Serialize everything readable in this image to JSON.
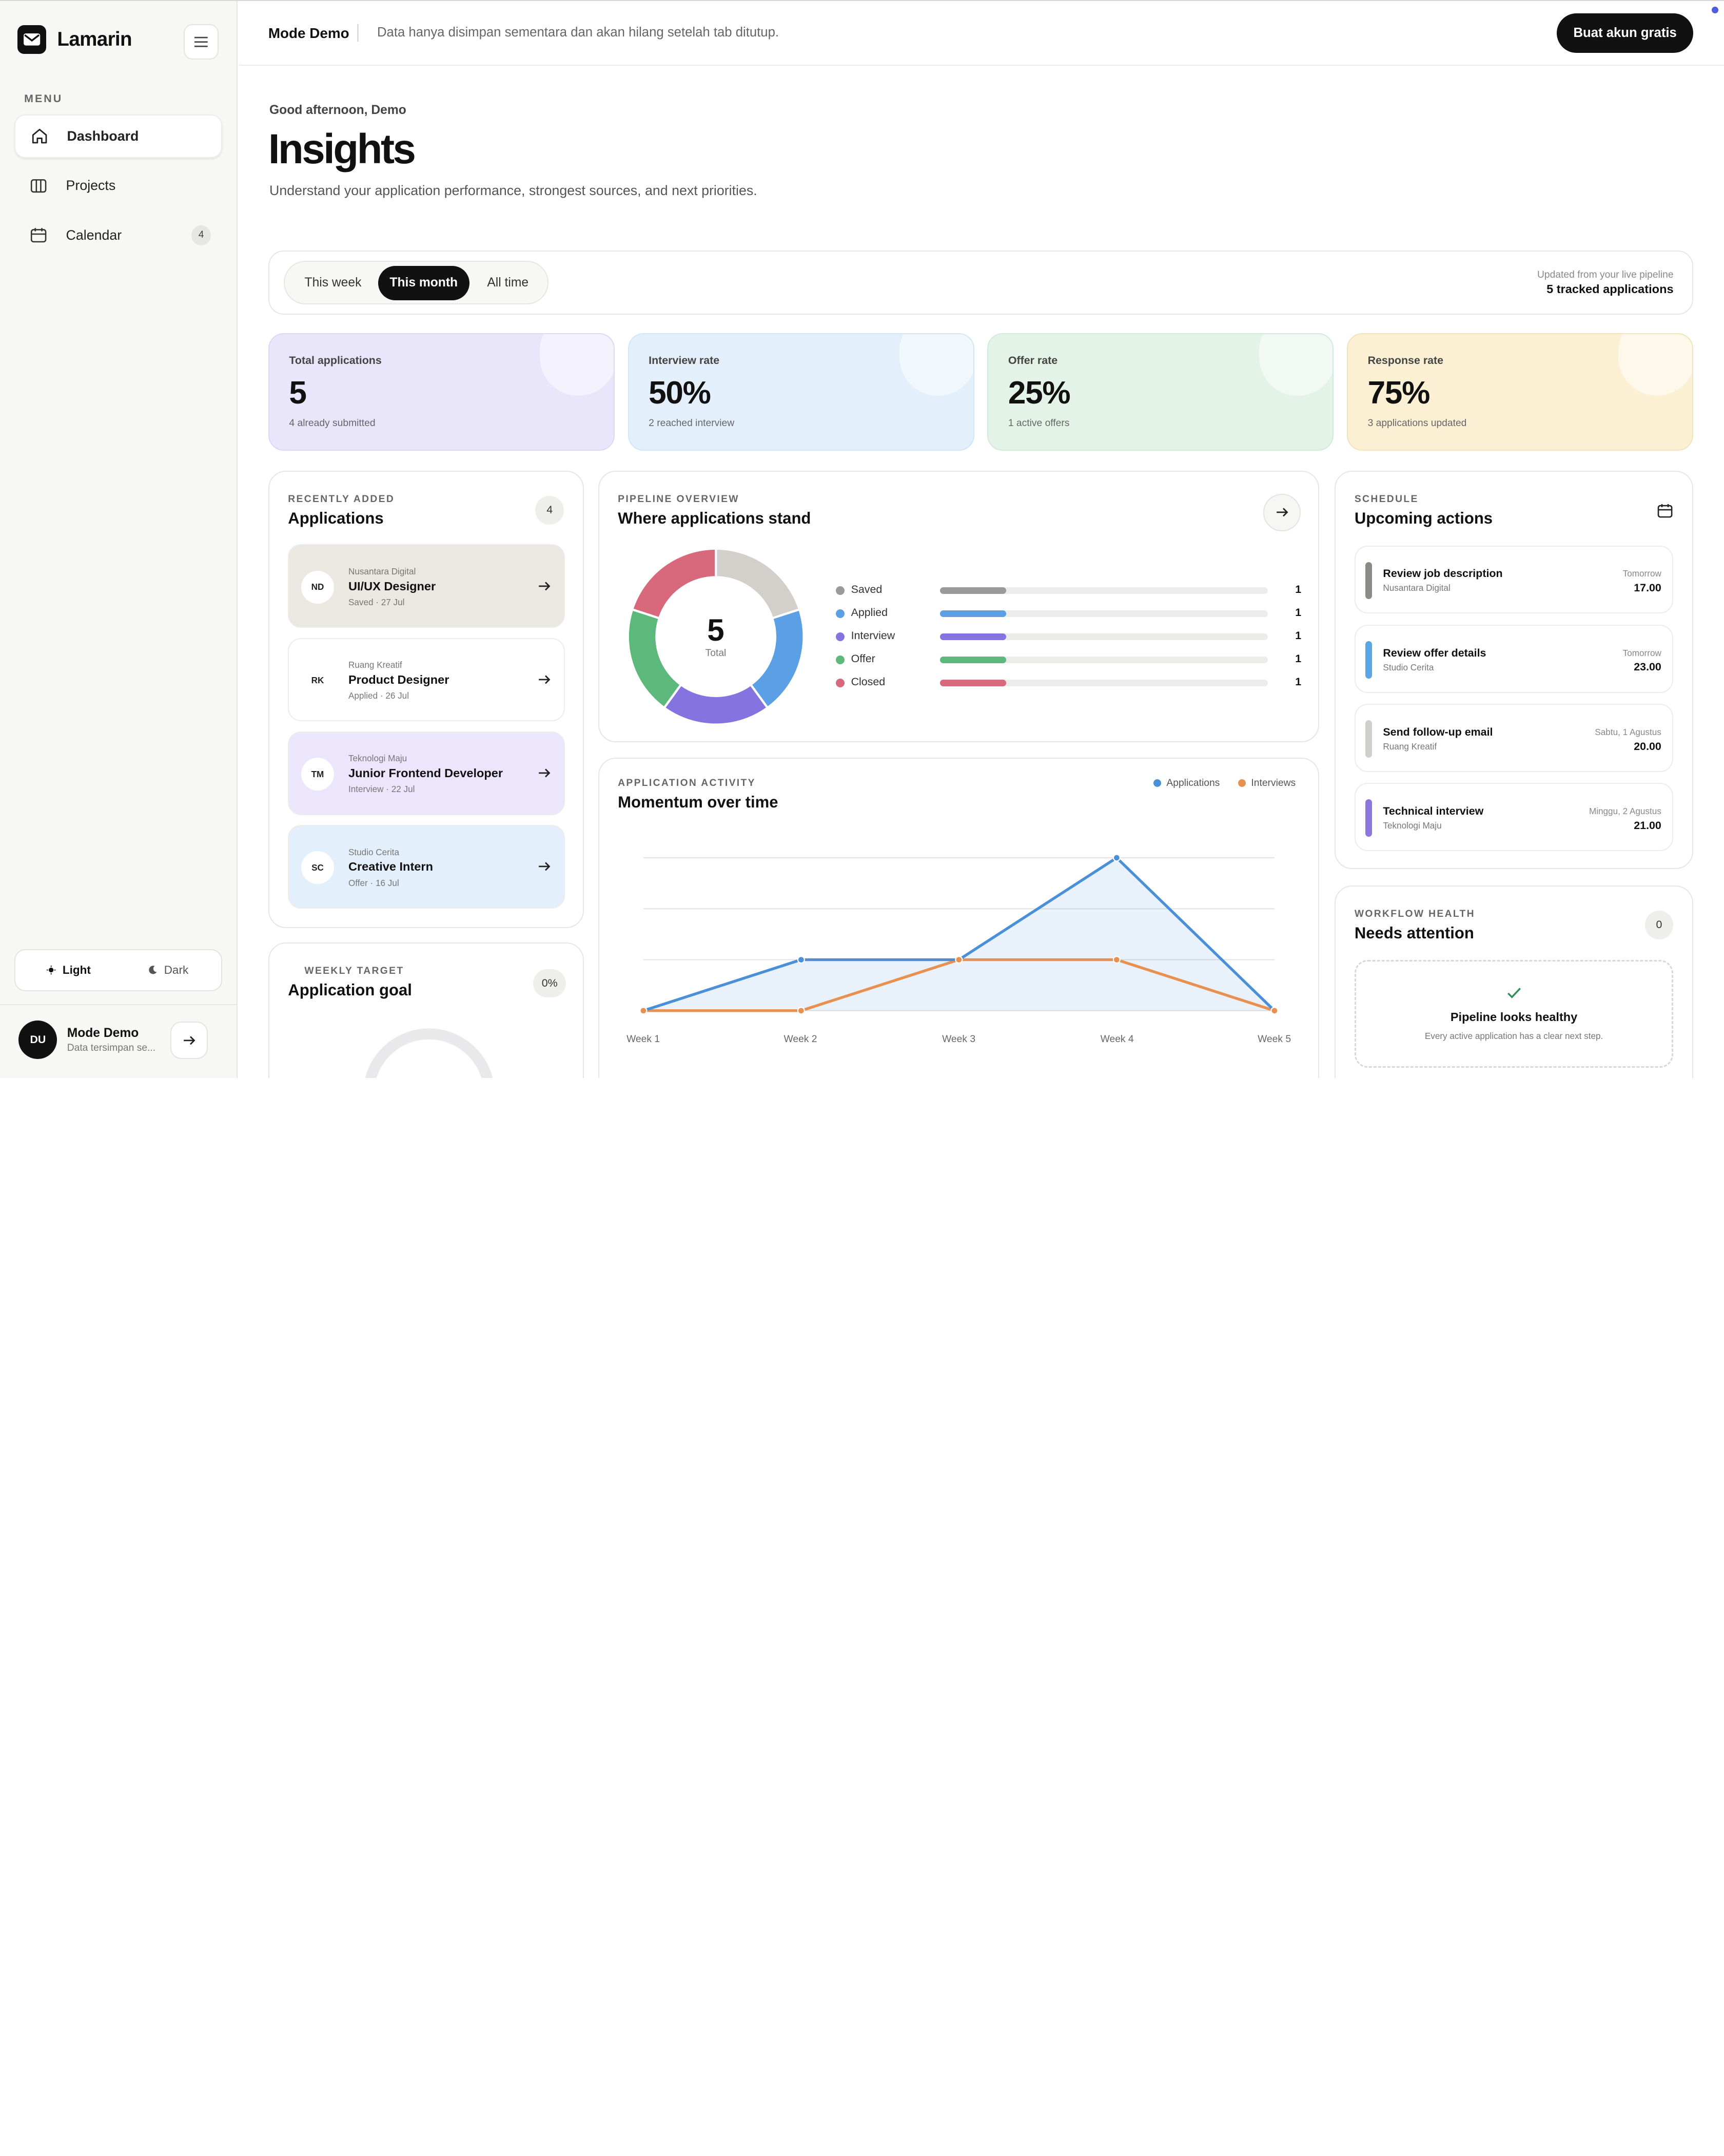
{
  "app": {
    "name": "Lamarin"
  },
  "sidebar": {
    "menu_label": "MENU",
    "items": [
      {
        "label": "Dashboard",
        "icon": "home-icon",
        "active": true
      },
      {
        "label": "Projects",
        "icon": "columns-icon"
      },
      {
        "label": "Calendar",
        "icon": "calendar-icon",
        "badge": "4"
      }
    ],
    "theme": {
      "light": "Light",
      "dark": "Dark",
      "selected": "Light"
    },
    "user": {
      "initials": "DU",
      "name": "Mode Demo",
      "subtitle": "Data tersimpan se..."
    }
  },
  "topbar": {
    "mode": "Mode Demo",
    "message": "Data hanya disimpan sementara dan akan hilang setelah tab ditutup.",
    "cta": "Buat akun gratis"
  },
  "header": {
    "greeting": "Good afternoon, Demo",
    "title": "Insights",
    "subtitle": "Understand your application performance, strongest sources, and next priorities."
  },
  "filters": {
    "options": [
      "This week",
      "This month",
      "All time"
    ],
    "selected": "This month",
    "updated_note": "Updated from your live pipeline",
    "tracked": "5 tracked applications"
  },
  "stats": [
    {
      "label": "Total applications",
      "value": "5",
      "sub": "4 already submitted",
      "color": "#e9e5fb"
    },
    {
      "label": "Interview rate",
      "value": "50%",
      "sub": "2 reached interview",
      "color": "#e3f0fb"
    },
    {
      "label": "Offer rate",
      "value": "25%",
      "sub": "1 active offers",
      "color": "#e4f3e8"
    },
    {
      "label": "Response rate",
      "value": "75%",
      "sub": "3 applications updated",
      "color": "#fbf0d4"
    }
  ],
  "recent": {
    "eyebrow": "RECENTLY ADDED",
    "title": "Applications",
    "count": "4",
    "items": [
      {
        "initials": "ND",
        "company": "Nusantara Digital",
        "role": "UI/UX Designer",
        "meta": "Saved · 27 Jul",
        "color": "#ebe8e2"
      },
      {
        "initials": "RK",
        "company": "Ruang Kreatif",
        "role": "Product Designer",
        "meta": "Applied · 26 Jul",
        "color": "#ffffff"
      },
      {
        "initials": "TM",
        "company": "Teknologi Maju",
        "role": "Junior Frontend Developer",
        "meta": "Interview · 22 Jul",
        "color": "#ebe6fb"
      },
      {
        "initials": "SC",
        "company": "Studio Cerita",
        "role": "Creative Intern",
        "meta": "Offer · 16 Jul",
        "color": "#e3effb"
      }
    ]
  },
  "goal": {
    "eyebrow": "WEEKLY TARGET",
    "title": "Application goal",
    "percent": "0%",
    "progress": 0
  },
  "pipeline": {
    "eyebrow": "PIPELINE OVERVIEW",
    "title": "Where applications stand",
    "total": "5",
    "total_label": "Total",
    "stages": [
      {
        "name": "Saved",
        "count": 1,
        "color": "#9a9a98"
      },
      {
        "name": "Applied",
        "count": 1,
        "color": "#5b9fe4"
      },
      {
        "name": "Interview",
        "count": 1,
        "color": "#8574e0"
      },
      {
        "name": "Offer",
        "count": 1,
        "color": "#5cb87b"
      },
      {
        "name": "Closed",
        "count": 1,
        "color": "#d8687c"
      }
    ],
    "donut_colors": [
      "#d3d0cb",
      "#5b9fe4",
      "#8574e0",
      "#5cb87b",
      "#d8687c"
    ]
  },
  "activity": {
    "eyebrow": "APPLICATION ACTIVITY",
    "title": "Momentum over time",
    "legend": [
      "Applications",
      "Interviews"
    ]
  },
  "chart_data": {
    "type": "line",
    "categories": [
      "Week 1",
      "Week 2",
      "Week 3",
      "Week 4",
      "Week 5"
    ],
    "series": [
      {
        "name": "Applications",
        "values": [
          0,
          1,
          1,
          3,
          0
        ],
        "color": "#4a90d9"
      },
      {
        "name": "Interviews",
        "values": [
          0,
          0,
          1,
          1,
          0
        ],
        "color": "#e8904f"
      }
    ],
    "ylim": [
      0,
      3
    ],
    "grid": true,
    "legend": "top-right"
  },
  "schedule": {
    "eyebrow": "SCHEDULE",
    "title": "Upcoming actions",
    "items": [
      {
        "title": "Review job description",
        "sub": "Nusantara Digital",
        "when": "Tomorrow",
        "time": "17.00",
        "color": "#8c8a84"
      },
      {
        "title": "Review offer details",
        "sub": "Studio Cerita",
        "when": "Tomorrow",
        "time": "23.00",
        "color": "#5aa5e6"
      },
      {
        "title": "Send follow-up email",
        "sub": "Ruang Kreatif",
        "when": "Sabtu, 1 Agustus",
        "time": "20.00",
        "color": "#cfcfcc"
      },
      {
        "title": "Technical interview",
        "sub": "Teknologi Maju",
        "when": "Minggu, 2 Agustus",
        "time": "21.00",
        "color": "#8d76e0"
      }
    ]
  },
  "health": {
    "eyebrow": "WORKFLOW HEALTH",
    "title": "Needs attention",
    "count": "0",
    "status_title": "Pipeline looks healthy",
    "status_sub": "Every active application has a clear next step."
  }
}
